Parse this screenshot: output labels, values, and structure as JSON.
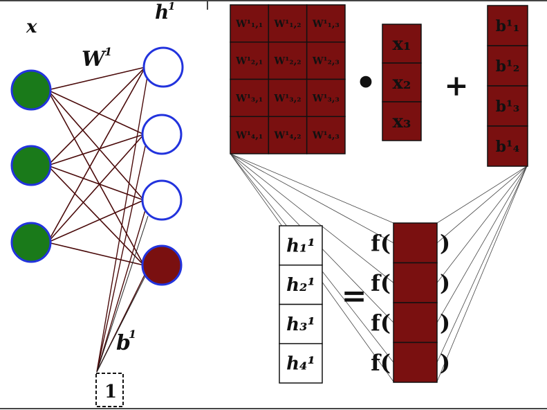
{
  "colors": {
    "matrix_fill": "#7a1010",
    "input_node_fill": "#1a7a1a",
    "node_stroke": "#2233dd",
    "active_node_fill": "#7a1010",
    "edge_color": "#4a0a0a"
  },
  "labels": {
    "x": "x",
    "h1": "h",
    "h1_sup": "1",
    "W1": "W",
    "W1_sup": "1",
    "b1": "b",
    "b1_sup": "1",
    "bias_box": "1",
    "dot_op": "•",
    "plus_op": "+",
    "equals_op": "=",
    "f_open": "f(",
    "f_close": ")"
  },
  "weight_matrix": [
    [
      "W¹₁,₁",
      "W¹₁,₂",
      "W¹₁,₃"
    ],
    [
      "W¹₂,₁",
      "W¹₂,₂",
      "W¹₂,₃"
    ],
    [
      "W¹₃,₁",
      "W¹₃,₂",
      "W¹₃,₃"
    ],
    [
      "W¹₄,₁",
      "W¹₄,₂",
      "W¹₄,₃"
    ]
  ],
  "x_vector": [
    "x₁",
    "x₂",
    "x₃"
  ],
  "b_vector": [
    "b¹₁",
    "b¹₂",
    "b¹₃",
    "b¹₄"
  ],
  "h_vector": [
    "h₁¹",
    "h₂¹",
    "h₃¹",
    "h₄¹"
  ],
  "output_rows": 4
}
